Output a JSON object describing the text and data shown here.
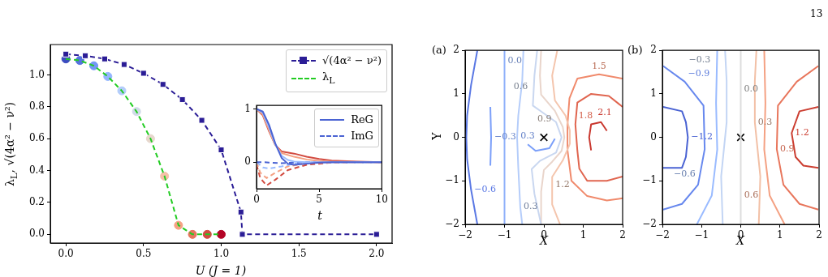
{
  "chart_data": [
    {
      "type": "line",
      "xlabel": "U (J = 1)",
      "ylabel": "λ$_{L}$, √(4α² − ν²)",
      "xlim": [
        -0.1,
        2.1
      ],
      "ylim": [
        -0.054,
        1.19
      ],
      "xticks": [
        {
          "value": 0,
          "label": "0.0"
        },
        {
          "value": 0.5,
          "label": "0.5"
        },
        {
          "value": 1,
          "label": "1.0"
        },
        {
          "value": 1.5,
          "label": "1.5"
        },
        {
          "value": 2,
          "label": "2.0"
        }
      ],
      "yticks": [
        {
          "value": 0,
          "label": "0.0"
        },
        {
          "value": 0.2,
          "label": "0.2"
        },
        {
          "value": 0.4,
          "label": "0.4"
        },
        {
          "value": 0.6,
          "label": "0.6"
        },
        {
          "value": 0.8,
          "label": "0.8"
        },
        {
          "value": 1,
          "label": "1.0"
        }
      ],
      "legend": "top right",
      "series": [
        {
          "name": "√(4α² − ν²)",
          "color": "#2b1d96",
          "marker": "square",
          "line_style": "dashed",
          "x": [
            0,
            0.125,
            0.25,
            0.375,
            0.5,
            0.625,
            0.75,
            0.875,
            1.0,
            1.127,
            1.136,
            2.0
          ],
          "values": [
            1.13,
            1.12,
            1.1,
            1.065,
            1.01,
            0.94,
            0.845,
            0.715,
            0.53,
            0.14,
            0,
            0
          ]
        },
        {
          "name": "λ$_{L}$",
          "color": "#22cc22",
          "marker": "none",
          "line_style": "dashed",
          "x": [
            0,
            0.09,
            0.18,
            0.27,
            0.36,
            0.455,
            0.545,
            0.635,
            0.725,
            0.815,
            0.91,
            1.0
          ],
          "values": [
            1.1,
            1.09,
            1.057,
            0.99,
            0.9,
            0.77,
            0.6,
            0.365,
            0.057,
            0,
            0,
            0
          ]
        },
        {
          "type": "scatter",
          "marker": "circle",
          "x": [
            0,
            0.09,
            0.18,
            0.27,
            0.36,
            0.455,
            0.545,
            0.635,
            0.725,
            0.815,
            0.91,
            1.0
          ],
          "values": [
            1.1,
            1.09,
            1.057,
            0.99,
            0.9,
            0.77,
            0.6,
            0.365,
            0.057,
            0,
            0,
            0
          ],
          "colors": [
            "#3b4cc0",
            "#5673e0",
            "#7397f5",
            "#94b6ff",
            "#b3cdfb",
            "#d1dae9",
            "#e7d7cd",
            "#f5c1a9",
            "#f6a283",
            "#e7765e",
            "#d24b40",
            "#b40426"
          ]
        }
      ]
    },
    {
      "type": "line",
      "xlabel": "t",
      "xlim": [
        0,
        10
      ],
      "ylim": [
        -0.5,
        1.065
      ],
      "xticks": [
        0,
        5,
        10
      ],
      "yticks": [
        0,
        1
      ],
      "legend": "top right",
      "series": [
        {
          "name": "ReG",
          "color": "#4a63d3",
          "x": [
            0,
            0.5,
            1,
            1.5,
            2,
            2.5,
            3,
            4,
            5,
            6,
            10
          ],
          "values": [
            1,
            0.95,
            0.7,
            0.35,
            0.08,
            -0.03,
            -0.05,
            -0.03,
            -0.01,
            0,
            0
          ]
        },
        {
          "color": "#9abbff",
          "x": [
            0,
            0.5,
            1,
            1.5,
            2,
            2.5,
            3,
            4,
            10
          ],
          "values": [
            1,
            0.93,
            0.65,
            0.33,
            0.12,
            0.04,
            0.01,
            0,
            0
          ]
        },
        {
          "color": "#f4a183",
          "x": [
            0,
            0.5,
            1,
            1.5,
            2,
            3,
            4,
            5,
            6,
            10
          ],
          "values": [
            1,
            0.9,
            0.6,
            0.32,
            0.17,
            0.1,
            0.05,
            0.02,
            0.01,
            0
          ]
        },
        {
          "color": "#d24b40",
          "x": [
            0,
            0.5,
            1,
            1.5,
            2,
            3,
            4,
            5,
            6,
            8,
            10
          ],
          "values": [
            1,
            0.88,
            0.58,
            0.32,
            0.2,
            0.16,
            0.1,
            0.06,
            0.03,
            0.01,
            0
          ]
        },
        {
          "name": "ImG",
          "color": "#4a63d3",
          "line_style": "dashed",
          "x": [
            0,
            0.5,
            1,
            2,
            3,
            4,
            10
          ],
          "values": [
            0,
            0,
            -0.01,
            -0.02,
            -0.01,
            0,
            0
          ]
        },
        {
          "color": "#9abbff",
          "line_style": "dashed",
          "x": [
            0,
            0.5,
            1,
            2,
            3,
            4,
            5,
            10
          ],
          "values": [
            0,
            -0.1,
            -0.12,
            -0.08,
            -0.03,
            -0.01,
            0,
            0
          ]
        },
        {
          "color": "#f4a183",
          "line_style": "dashed",
          "x": [
            0,
            0.3,
            0.8,
            1.5,
            2.5,
            4,
            6,
            10
          ],
          "values": [
            0,
            -0.2,
            -0.3,
            -0.2,
            -0.08,
            -0.02,
            0,
            0
          ]
        },
        {
          "color": "#d24b40",
          "line_style": "dashed",
          "x": [
            0,
            0.3,
            0.8,
            1.5,
            2.5,
            4,
            6,
            8,
            10
          ],
          "values": [
            -0.05,
            -0.3,
            -0.44,
            -0.33,
            -0.15,
            -0.05,
            -0.01,
            0,
            0
          ]
        }
      ]
    },
    {
      "type": "line",
      "title": "(a)",
      "xlabel": "X",
      "ylabel": "Y",
      "xlim": [
        -2,
        2
      ],
      "ylim": [
        -2,
        2
      ],
      "xticks": [
        {
          "value": -2,
          "label": "−2"
        },
        {
          "value": -1,
          "label": "−1"
        },
        0,
        1,
        2
      ],
      "yticks": [
        {
          "value": -2,
          "label": "−2"
        },
        {
          "value": -1,
          "label": "−1"
        },
        0,
        1,
        2
      ],
      "series": [
        {
          "color": "#5a78e4",
          "x": [
            -1.69,
            -1.85,
            -1.95,
            -1.97,
            -1.95,
            -1.85,
            -1.69
          ],
          "values": [
            2,
            1.2,
            0.5,
            0,
            -0.5,
            -1.2,
            -2
          ]
        },
        {
          "color": "#7b9ff9",
          "x": [
            -1.36,
            -1.34,
            -1.36
          ],
          "values": [
            0.7,
            0,
            -0.65
          ]
        },
        {
          "color": "#8fb0fa",
          "x": [
            -1,
            -1,
            -1
          ],
          "values": [
            2,
            1.75,
            -2
          ]
        },
        {
          "color": "#b5cdfa",
          "x": [
            -0.52,
            -0.55,
            -0.65,
            -0.68,
            -0.65,
            -0.6,
            -0.55
          ],
          "values": [
            2,
            1.3,
            0.5,
            0,
            -0.7,
            -1.6,
            -2
          ]
        },
        {
          "color": "#7b9ff9",
          "x": [
            -0.41,
            -0.21,
            0.14,
            0.28
          ],
          "values": [
            -0.16,
            -0.31,
            -0.25,
            -0.03
          ]
        },
        {
          "color": "#c9d7f0",
          "x": [
            -0.17,
            -0.24,
            -0.28,
            -0.03,
            0.31,
            0.45,
            0.31,
            -0.1,
            -0.31,
            -0.24,
            -0.07
          ],
          "values": [
            2,
            1.42,
            0.73,
            0.57,
            0.35,
            0,
            -0.35,
            -0.54,
            -0.73,
            -1.3,
            -2
          ]
        },
        {
          "color": "#e9d5cb",
          "x": [
            -0.07,
            -0.1,
            -0.07,
            0.28,
            0.48,
            0.52,
            0.45,
            0.21,
            0,
            -0.07,
            -0.07
          ],
          "values": [
            2,
            1.42,
            0.98,
            0.61,
            0.24,
            0,
            -0.31,
            -0.56,
            -0.75,
            -1.25,
            -2
          ]
        },
        {
          "color": "#f4c5ad",
          "x": [
            0.34,
            0.21,
            0.28,
            0.55,
            0.66,
            0.66,
            0.48,
            0.21,
            0.21,
            0.41
          ],
          "values": [
            2,
            1.42,
            0.85,
            0.5,
            0.16,
            -0.15,
            -0.53,
            -0.91,
            -1.54,
            -2
          ]
        },
        {
          "color": "#f08a6c",
          "x": [
            2,
            1.4,
            0.85,
            0.65,
            0.6,
            0.6,
            0.7,
            1.1,
            1.6,
            2
          ],
          "values": [
            1.35,
            1.45,
            1.35,
            0.9,
            0.3,
            -0.3,
            -1.0,
            -1.35,
            -1.45,
            -1.4
          ]
        },
        {
          "color": "#e0654f",
          "x": [
            2,
            1.65,
            1.2,
            0.85,
            0.8,
            0.85,
            0.9,
            1.1,
            1.6,
            2
          ],
          "values": [
            0.7,
            0.95,
            1.0,
            0.8,
            0.3,
            -0.3,
            -0.72,
            -1.0,
            -1.0,
            -0.9
          ]
        },
        {
          "color": "#c9382f",
          "x": [
            1.6,
            1.45,
            1.2,
            1.15,
            1.2
          ],
          "values": [
            0.15,
            0.35,
            0.3,
            0,
            -0.3
          ]
        },
        {
          "type": "scatter",
          "marker": "cross",
          "color": "#000000",
          "x": [
            0
          ],
          "values": [
            0
          ]
        }
      ],
      "annotations": [
        {
          "text": "−0.6",
          "x": -1.85,
          "y": -1.2
        },
        {
          "text": "−0.3",
          "x": -1.34,
          "y": 0
        },
        {
          "text": "0.0",
          "x": -1,
          "y": 1.75
        },
        {
          "text": "0.3",
          "x": -0.41,
          "y": -0.16
        },
        {
          "text": "0.3",
          "x": -0.6,
          "y": -1.6
        },
        {
          "text": "0.6",
          "x": -0.24,
          "y": 1.42
        },
        {
          "text": "0.9",
          "x": 0.28,
          "y": 0.61
        },
        {
          "text": "1.2",
          "x": 0.21,
          "y": -0.91
        },
        {
          "text": "1.5",
          "x": 1.4,
          "y": 1.45
        },
        {
          "text": "1.8",
          "x": 0.8,
          "y": 0.3
        },
        {
          "text": "2.1",
          "x": 1.2,
          "y": 0.3
        }
      ]
    },
    {
      "type": "line",
      "title": "(b)",
      "xlabel": "X",
      "xlim": [
        -2,
        2
      ],
      "ylim": [
        -2,
        2
      ],
      "xticks": [
        {
          "value": -2,
          "label": "−2"
        },
        {
          "value": -1,
          "label": "−1"
        },
        0,
        1,
        2
      ],
      "yticks": [
        {
          "value": -2,
          "label": "−2"
        },
        {
          "value": -1,
          "label": "−1"
        },
        0,
        1,
        2
      ],
      "series": [
        {
          "color": "#4a63d3",
          "x": [
            -1.98,
            -1.5,
            -1.4,
            -1.35,
            -1.4,
            -1.5,
            -1.98
          ],
          "values": [
            0.7,
            0.6,
            0.35,
            0,
            -0.45,
            -0.7,
            -0.7
          ]
        },
        {
          "color": "#6788ee",
          "x": [
            -1.98,
            -1.43,
            -0.95,
            -0.92,
            -1.09,
            -1.5,
            -1.98
          ],
          "values": [
            1.64,
            1.28,
            0.73,
            -0.27,
            -1.09,
            -1.53,
            -1.66
          ]
        },
        {
          "color": "#9abbff",
          "x": [
            -1.12,
            -0.74,
            -0.6,
            -0.63,
            -0.6
          ],
          "values": [
            -2,
            -1.34,
            -0.28,
            0.79,
            2
          ]
        },
        {
          "color": "#c3d5f4",
          "x": [
            -0.4,
            -0.36,
            -0.36,
            -0.5,
            -0.46
          ],
          "values": [
            2,
            1.3,
            0.35,
            -0.9,
            -2
          ]
        },
        {
          "color": "#dddddd",
          "x": [
            0,
            0,
            0
          ],
          "values": [
            2,
            1.1,
            -2
          ]
        },
        {
          "color": "#f2c0a6",
          "x": [
            0.4,
            0.36,
            0.36,
            0.5,
            0.46
          ],
          "values": [
            2,
            1.3,
            0.35,
            -0.9,
            -2
          ]
        },
        {
          "color": "#f4a183",
          "x": [
            0.6,
            0.63,
            0.6,
            0.74,
            1.12
          ],
          "values": [
            2,
            0.79,
            -0.28,
            -1.34,
            -2
          ]
        },
        {
          "color": "#e8765c",
          "x": [
            1.98,
            1.43,
            0.95,
            0.92,
            1.09,
            1.5,
            1.98
          ],
          "values": [
            1.64,
            1.28,
            0.73,
            -0.27,
            -1.09,
            -1.53,
            -1.66
          ]
        },
        {
          "color": "#cc3f32",
          "x": [
            1.98,
            1.5,
            1.3,
            1.4,
            1.6,
            1.98
          ],
          "values": [
            0.7,
            0.6,
            0.1,
            -0.45,
            -0.65,
            -0.7
          ]
        },
        {
          "type": "scatter",
          "marker": "cross",
          "color": "#000000",
          "x": [
            0
          ],
          "values": [
            0
          ]
        }
      ],
      "annotations": [
        "13",
        {
          "text": "−1.2",
          "x": -1.35,
          "y": 0
        },
        {
          "text": "−0.9",
          "x": -1.43,
          "y": 1.28
        },
        {
          "text": "−0.6",
          "x": -0.74,
          "y": -1.34
        },
        {
          "text": "−0.3",
          "x": -0.36,
          "y": 1.3
        },
        {
          "text": "0.0",
          "x": 0,
          "y": 1.1
        },
        {
          "text": "0.3",
          "x": 0.36,
          "y": 0.35
        },
        {
          "text": "0.6",
          "x": 0.74,
          "y": -1.34
        },
        {
          "text": "0.9",
          "x": 0.92,
          "y": -0.27
        },
        {
          "text": "1.2",
          "x": 1.3,
          "y": 0.1
        }
      ]
    }
  ]
}
